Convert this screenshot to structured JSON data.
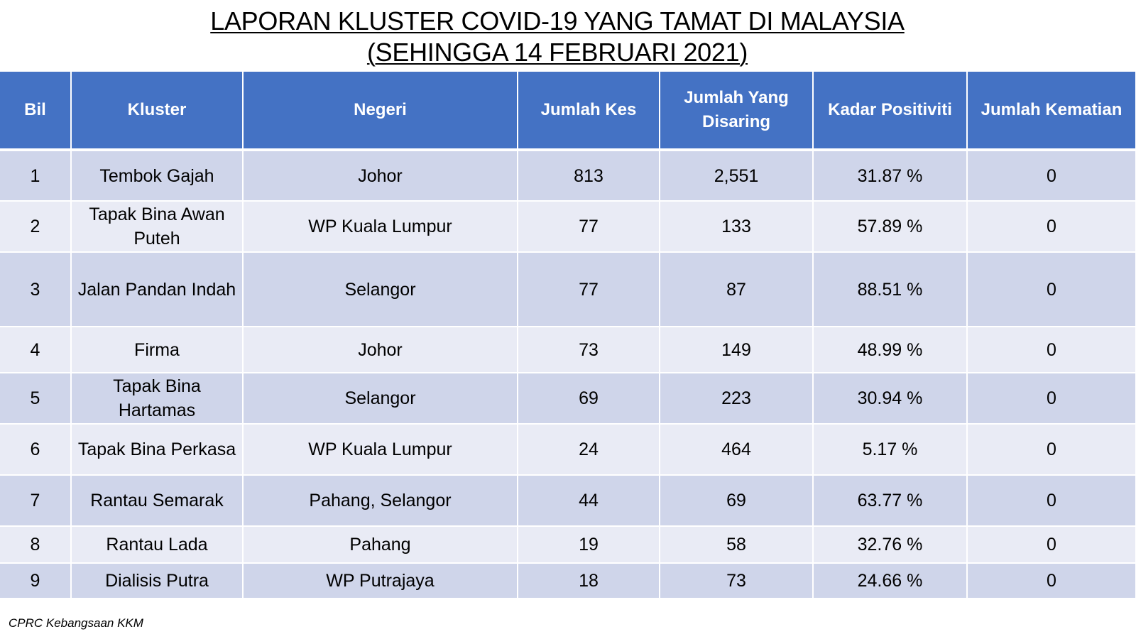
{
  "title": {
    "line1": "LAPORAN KLUSTER COVID-19 YANG TAMAT DI MALAYSIA",
    "line2": "(SEHINGGA  14 FEBRUARI 2021)"
  },
  "table": {
    "headers": [
      "Bil",
      "Kluster",
      "Negeri",
      "Jumlah Kes",
      "Jumlah Yang Disaring",
      "Kadar Positiviti",
      "Jumlah Kematian"
    ],
    "rows": [
      [
        "1",
        "Tembok Gajah",
        "Johor",
        "813",
        "2,551",
        "31.87 %",
        "0"
      ],
      [
        "2",
        "Tapak Bina Awan Puteh",
        "WP Kuala Lumpur",
        "77",
        "133",
        "57.89 %",
        "0"
      ],
      [
        "3",
        "Jalan Pandan Indah",
        "Selangor",
        "77",
        "87",
        "88.51 %",
        "0"
      ],
      [
        "4",
        "Firma",
        "Johor",
        "73",
        "149",
        "48.99 %",
        "0"
      ],
      [
        "5",
        "Tapak Bina Hartamas",
        "Selangor",
        "69",
        "223",
        "30.94 %",
        "0"
      ],
      [
        "6",
        "Tapak Bina Perkasa",
        "WP Kuala Lumpur",
        "24",
        "464",
        "5.17 %",
        "0"
      ],
      [
        "7",
        "Rantau Semarak",
        "Pahang, Selangor",
        "44",
        "69",
        "63.77 %",
        "0"
      ],
      [
        "8",
        "Rantau Lada",
        "Pahang",
        "19",
        "58",
        "32.76 %",
        "0"
      ],
      [
        "9",
        "Dialisis Putra",
        "WP Putrajaya",
        "18",
        "73",
        "24.66 %",
        "0"
      ]
    ]
  },
  "footer": {
    "source": "CPRC Kebangsaan KKM"
  },
  "colors": {
    "header_bg": "#4472c4",
    "row_dark": "#cfd5ea",
    "row_light": "#e9ebf5"
  }
}
